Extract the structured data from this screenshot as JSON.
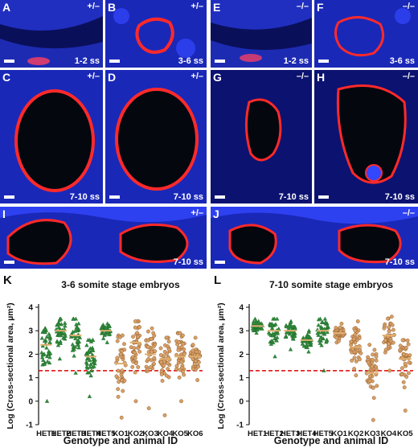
{
  "panels": [
    {
      "letter": "A",
      "genotype": "+/–",
      "stage": "1-2 ss"
    },
    {
      "letter": "B",
      "genotype": "+/–",
      "stage": "3-6 ss"
    },
    {
      "letter": "E",
      "genotype": "–/–",
      "stage": "1-2 ss"
    },
    {
      "letter": "F",
      "genotype": "–/–",
      "stage": "3-6 ss"
    },
    {
      "letter": "C",
      "genotype": "+/–",
      "stage": "7-10 ss"
    },
    {
      "letter": "D",
      "genotype": "+/–",
      "stage": "7-10 ss"
    },
    {
      "letter": "G",
      "genotype": "–/–",
      "stage": "7-10 ss"
    },
    {
      "letter": "H",
      "genotype": "–/–",
      "stage": "7-10 ss"
    },
    {
      "letter": "I",
      "genotype": "+/–",
      "stage": "7-10 ss"
    },
    {
      "letter": "J",
      "genotype": "–/–",
      "stage": "7-10 ss"
    }
  ],
  "colors": {
    "nuclei": "#1a2cff",
    "membrane": "#ff2a2a",
    "het": "#2e8b3a",
    "ko": "#d9a066",
    "mean": "#e0b070",
    "threshold": "#e00000"
  },
  "chart_data": [
    {
      "letter": "K",
      "type": "scatter",
      "title": "3-6 somite stage embryos",
      "xlabel": "Genotype and animal ID",
      "ylabel": "Log (Cross-sectional area, µm²)",
      "ylim": [
        -1,
        4
      ],
      "yticks": [
        "-1",
        "0",
        "1",
        "2",
        "3",
        "4"
      ],
      "threshold": 1.3,
      "categories": [
        "HET1",
        "HET2",
        "HET3",
        "HET4",
        "HET5",
        "KO1",
        "KO2",
        "KO3",
        "KO4",
        "KO5",
        "KO6"
      ],
      "series": [
        {
          "id": "HET1",
          "group": "het",
          "mean": 2.4,
          "min": 0.0,
          "max": 3.1
        },
        {
          "id": "HET2",
          "group": "het",
          "mean": 3.0,
          "min": 1.8,
          "max": 3.5
        },
        {
          "id": "HET3",
          "group": "het",
          "mean": 2.8,
          "min": 1.2,
          "max": 3.5
        },
        {
          "id": "HET4",
          "group": "het",
          "mean": 1.9,
          "min": 0.2,
          "max": 2.6
        },
        {
          "id": "HET5",
          "group": "het",
          "mean": 3.0,
          "min": 2.5,
          "max": 3.3
        },
        {
          "id": "KO1",
          "group": "ko",
          "mean": 1.6,
          "min": -0.7,
          "max": 2.8
        },
        {
          "id": "KO2",
          "group": "ko",
          "mean": 2.5,
          "min": 0.0,
          "max": 3.4
        },
        {
          "id": "KO3",
          "group": "ko",
          "mean": 2.0,
          "min": -0.3,
          "max": 3.1
        },
        {
          "id": "KO4",
          "group": "ko",
          "mean": 1.8,
          "min": -0.6,
          "max": 2.7
        },
        {
          "id": "KO5",
          "group": "ko",
          "mean": 1.9,
          "min": 0.0,
          "max": 2.9
        },
        {
          "id": "KO6",
          "group": "ko",
          "mean": 1.9,
          "min": 0.9,
          "max": 2.7
        }
      ]
    },
    {
      "letter": "L",
      "type": "scatter",
      "title": "7-10 somite stage embryos",
      "xlabel": "Genotype and animal ID",
      "ylabel": "Log (Cross-sectional area, µm²)",
      "ylim": [
        -1,
        4
      ],
      "yticks": [
        "-1",
        "0",
        "1",
        "2",
        "3",
        "4"
      ],
      "threshold": 1.3,
      "categories": [
        "HET1",
        "HET2",
        "HET3",
        "HET4",
        "HET5",
        "KO1",
        "KO2",
        "KO3",
        "KO4",
        "KO5"
      ],
      "series": [
        {
          "id": "HET1",
          "group": "het",
          "mean": 3.2,
          "min": 2.9,
          "max": 3.5
        },
        {
          "id": "HET2",
          "group": "het",
          "mean": 3.0,
          "min": 1.9,
          "max": 3.5
        },
        {
          "id": "HET3",
          "group": "het",
          "mean": 3.0,
          "min": 2.2,
          "max": 3.4
        },
        {
          "id": "HET4",
          "group": "het",
          "mean": 2.6,
          "min": 2.1,
          "max": 3.0
        },
        {
          "id": "HET5",
          "group": "het",
          "mean": 3.0,
          "min": 1.3,
          "max": 3.5
        },
        {
          "id": "KO1",
          "group": "ko",
          "mean": 2.9,
          "min": 2.5,
          "max": 3.3
        },
        {
          "id": "KO2",
          "group": "ko",
          "mean": 2.3,
          "min": 1.1,
          "max": 3.4
        },
        {
          "id": "KO3",
          "group": "ko",
          "mean": 1.2,
          "min": -0.8,
          "max": 2.4
        },
        {
          "id": "KO4",
          "group": "ko",
          "mean": 2.8,
          "min": 1.3,
          "max": 3.6
        },
        {
          "id": "KO5",
          "group": "ko",
          "mean": 1.8,
          "min": -0.4,
          "max": 2.6
        }
      ]
    }
  ]
}
